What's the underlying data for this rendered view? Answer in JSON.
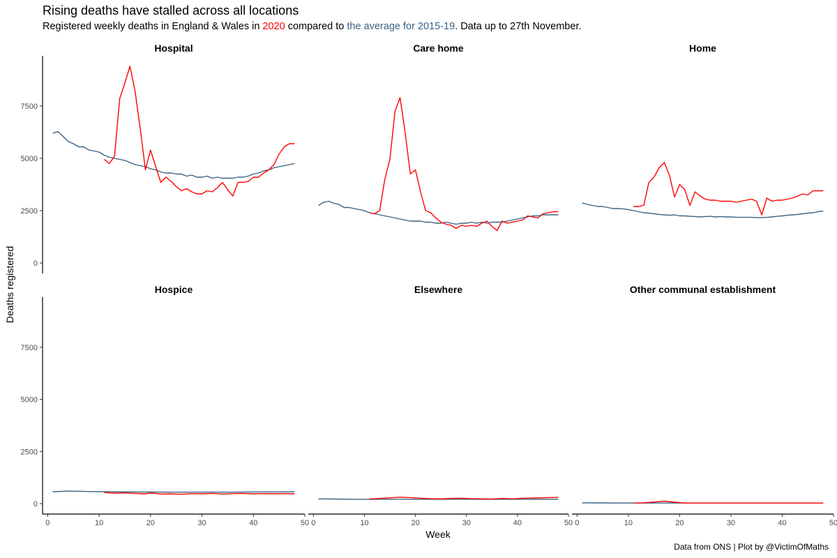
{
  "title": "Rising deaths have stalled across all locations",
  "subtitle": {
    "prefix": "Registered weekly deaths in England & Wales in ",
    "year": "2020",
    "middle": " compared to ",
    "avg": "the average for 2015-19",
    "suffix": ". Data up to 27th November."
  },
  "caption": "Data from ONS | Plot by @VictimOfMaths",
  "colors": {
    "current": "#ff0000",
    "average": "#3b6282",
    "axis": "#000000",
    "text": "#4d4d4d"
  },
  "chart_data": {
    "type": "line",
    "xlabel": "Week",
    "ylabel": "Deaths registered",
    "xlim": [
      -1,
      50
    ],
    "ylim": [
      -500,
      9900
    ],
    "x_ticks": [
      0,
      10,
      20,
      30,
      40,
      50
    ],
    "y_ticks": [
      0,
      2500,
      5000,
      7500
    ],
    "series_names": [
      "2020",
      "average 2015-19"
    ],
    "facets": [
      {
        "name": "Hospital",
        "avg": {
          "x": [
            1,
            2,
            3,
            4,
            5,
            6,
            7,
            8,
            9,
            10,
            11,
            12,
            13,
            14,
            15,
            16,
            17,
            18,
            19,
            20,
            21,
            22,
            23,
            24,
            25,
            26,
            27,
            28,
            29,
            30,
            31,
            32,
            33,
            34,
            35,
            36,
            37,
            38,
            39,
            40,
            41,
            42,
            43,
            44,
            45,
            46,
            47,
            48
          ],
          "y": [
            6200,
            6280,
            6050,
            5800,
            5700,
            5550,
            5550,
            5400,
            5350,
            5300,
            5150,
            5050,
            5000,
            4950,
            4900,
            4800,
            4700,
            4650,
            4600,
            4500,
            4450,
            4350,
            4300,
            4300,
            4250,
            4250,
            4150,
            4200,
            4100,
            4100,
            4150,
            4050,
            4100,
            4050,
            4050,
            4050,
            4100,
            4100,
            4150,
            4250,
            4300,
            4400,
            4450,
            4550,
            4600,
            4650,
            4700,
            4750
          ]
        },
        "current": {
          "x": [
            11,
            12,
            13,
            14,
            15,
            16,
            17,
            18,
            19,
            20,
            21,
            22,
            23,
            24,
            25,
            26,
            27,
            28,
            29,
            30,
            31,
            32,
            33,
            34,
            35,
            36,
            37,
            38,
            39,
            40,
            41,
            42,
            43,
            44,
            45,
            46,
            47,
            48
          ],
          "y": [
            4950,
            4750,
            5100,
            7850,
            8600,
            9400,
            8200,
            6400,
            4450,
            5400,
            4600,
            3850,
            4100,
            3900,
            3650,
            3450,
            3550,
            3400,
            3300,
            3300,
            3450,
            3400,
            3600,
            3850,
            3500,
            3200,
            3850,
            3850,
            3900,
            4100,
            4100,
            4300,
            4450,
            4700,
            5200,
            5550,
            5700,
            5700
          ]
        }
      },
      {
        "name": "Care home",
        "avg": {
          "x": [
            1,
            2,
            3,
            4,
            5,
            6,
            7,
            8,
            9,
            10,
            11,
            12,
            13,
            14,
            15,
            16,
            17,
            18,
            19,
            20,
            21,
            22,
            23,
            24,
            25,
            26,
            27,
            28,
            29,
            30,
            31,
            32,
            33,
            34,
            35,
            36,
            37,
            38,
            39,
            40,
            41,
            42,
            43,
            44,
            45,
            46,
            47,
            48
          ],
          "y": [
            2750,
            2900,
            2950,
            2850,
            2800,
            2650,
            2650,
            2600,
            2550,
            2500,
            2400,
            2350,
            2300,
            2250,
            2200,
            2150,
            2100,
            2050,
            2000,
            2000,
            2000,
            1950,
            1950,
            1900,
            1900,
            1950,
            1900,
            1850,
            1900,
            1900,
            1950,
            1900,
            1950,
            1900,
            1950,
            1950,
            1950,
            2000,
            2050,
            2100,
            2150,
            2200,
            2250,
            2250,
            2300,
            2300,
            2300,
            2300
          ]
        },
        "current": {
          "x": [
            11,
            12,
            13,
            14,
            15,
            16,
            17,
            18,
            19,
            20,
            21,
            22,
            23,
            24,
            25,
            26,
            27,
            28,
            29,
            30,
            31,
            32,
            33,
            34,
            35,
            36,
            37,
            38,
            39,
            40,
            41,
            42,
            43,
            44,
            45,
            46,
            47,
            48
          ],
          "y": [
            2400,
            2350,
            2500,
            4000,
            4950,
            7250,
            7900,
            6200,
            4250,
            4450,
            3400,
            2500,
            2400,
            2150,
            1950,
            1850,
            1800,
            1650,
            1800,
            1750,
            1800,
            1750,
            1900,
            2000,
            1750,
            1550,
            2000,
            1900,
            1950,
            2000,
            2050,
            2250,
            2200,
            2150,
            2350,
            2400,
            2450,
            2450
          ]
        }
      },
      {
        "name": "Home",
        "avg": {
          "x": [
            1,
            2,
            3,
            4,
            5,
            6,
            7,
            8,
            9,
            10,
            11,
            12,
            13,
            14,
            15,
            16,
            17,
            18,
            19,
            20,
            21,
            22,
            23,
            24,
            25,
            26,
            27,
            28,
            29,
            30,
            31,
            32,
            33,
            34,
            35,
            36,
            37,
            38,
            39,
            40,
            41,
            42,
            43,
            44,
            45,
            46,
            47,
            48
          ],
          "y": [
            2870,
            2800,
            2750,
            2700,
            2700,
            2650,
            2600,
            2600,
            2580,
            2550,
            2500,
            2450,
            2400,
            2380,
            2350,
            2320,
            2300,
            2280,
            2300,
            2250,
            2250,
            2230,
            2220,
            2200,
            2220,
            2230,
            2200,
            2220,
            2200,
            2200,
            2180,
            2180,
            2180,
            2180,
            2170,
            2170,
            2180,
            2200,
            2230,
            2250,
            2280,
            2300,
            2320,
            2350,
            2380,
            2400,
            2450,
            2480
          ]
        },
        "current": {
          "x": [
            11,
            12,
            13,
            14,
            15,
            16,
            17,
            18,
            19,
            20,
            21,
            22,
            23,
            24,
            25,
            26,
            27,
            28,
            29,
            30,
            31,
            32,
            33,
            34,
            35,
            36,
            37,
            38,
            39,
            40,
            41,
            42,
            43,
            44,
            45,
            46,
            47,
            48
          ],
          "y": [
            2700,
            2700,
            2750,
            3850,
            4100,
            4550,
            4800,
            4200,
            3150,
            3750,
            3500,
            2750,
            3400,
            3200,
            3050,
            3000,
            3000,
            2950,
            2950,
            2950,
            2900,
            2950,
            3000,
            3050,
            2950,
            2300,
            3100,
            2950,
            3000,
            3000,
            3050,
            3100,
            3200,
            3300,
            3250,
            3450,
            3450,
            3450
          ]
        }
      },
      {
        "name": "Hospice",
        "avg": {
          "x": [
            1,
            4,
            8,
            12,
            16,
            20,
            24,
            28,
            32,
            36,
            40,
            44,
            48
          ],
          "y": [
            570,
            600,
            580,
            570,
            560,
            555,
            550,
            550,
            550,
            550,
            560,
            560,
            570
          ]
        },
        "current": {
          "x": [
            11,
            13,
            15,
            17,
            19,
            20,
            22,
            24,
            26,
            28,
            30,
            32,
            34,
            36,
            38,
            40,
            42,
            44,
            46,
            48
          ],
          "y": [
            530,
            500,
            520,
            490,
            470,
            510,
            460,
            470,
            450,
            480,
            470,
            490,
            460,
            480,
            490,
            470,
            480,
            470,
            480,
            470
          ]
        }
      },
      {
        "name": "Elsewhere",
        "avg": {
          "x": [
            1,
            4,
            8,
            12,
            16,
            20,
            24,
            28,
            32,
            36,
            40,
            44,
            48
          ],
          "y": [
            230,
            220,
            210,
            210,
            210,
            210,
            210,
            210,
            210,
            210,
            210,
            210,
            210
          ]
        },
        "current": {
          "x": [
            11,
            13,
            15,
            17,
            19,
            21,
            23,
            25,
            27,
            29,
            31,
            33,
            35,
            37,
            39,
            41,
            43,
            45,
            46,
            48
          ],
          "y": [
            220,
            250,
            280,
            310,
            290,
            260,
            240,
            230,
            250,
            260,
            240,
            230,
            220,
            250,
            230,
            260,
            270,
            280,
            290,
            300
          ]
        }
      },
      {
        "name": "Other communal establishment",
        "avg": {
          "x": [
            1,
            4,
            8,
            12,
            16,
            20,
            24,
            28,
            32,
            36,
            40,
            44,
            48
          ],
          "y": [
            40,
            35,
            30,
            30,
            30,
            30,
            30,
            30,
            30,
            30,
            30,
            30,
            30
          ]
        },
        "current": {
          "x": [
            11,
            13,
            15,
            17,
            19,
            21,
            24,
            28,
            32,
            36,
            40,
            44,
            48
          ],
          "y": [
            30,
            40,
            80,
            120,
            70,
            30,
            30,
            30,
            30,
            30,
            30,
            30,
            30
          ]
        }
      }
    ]
  }
}
